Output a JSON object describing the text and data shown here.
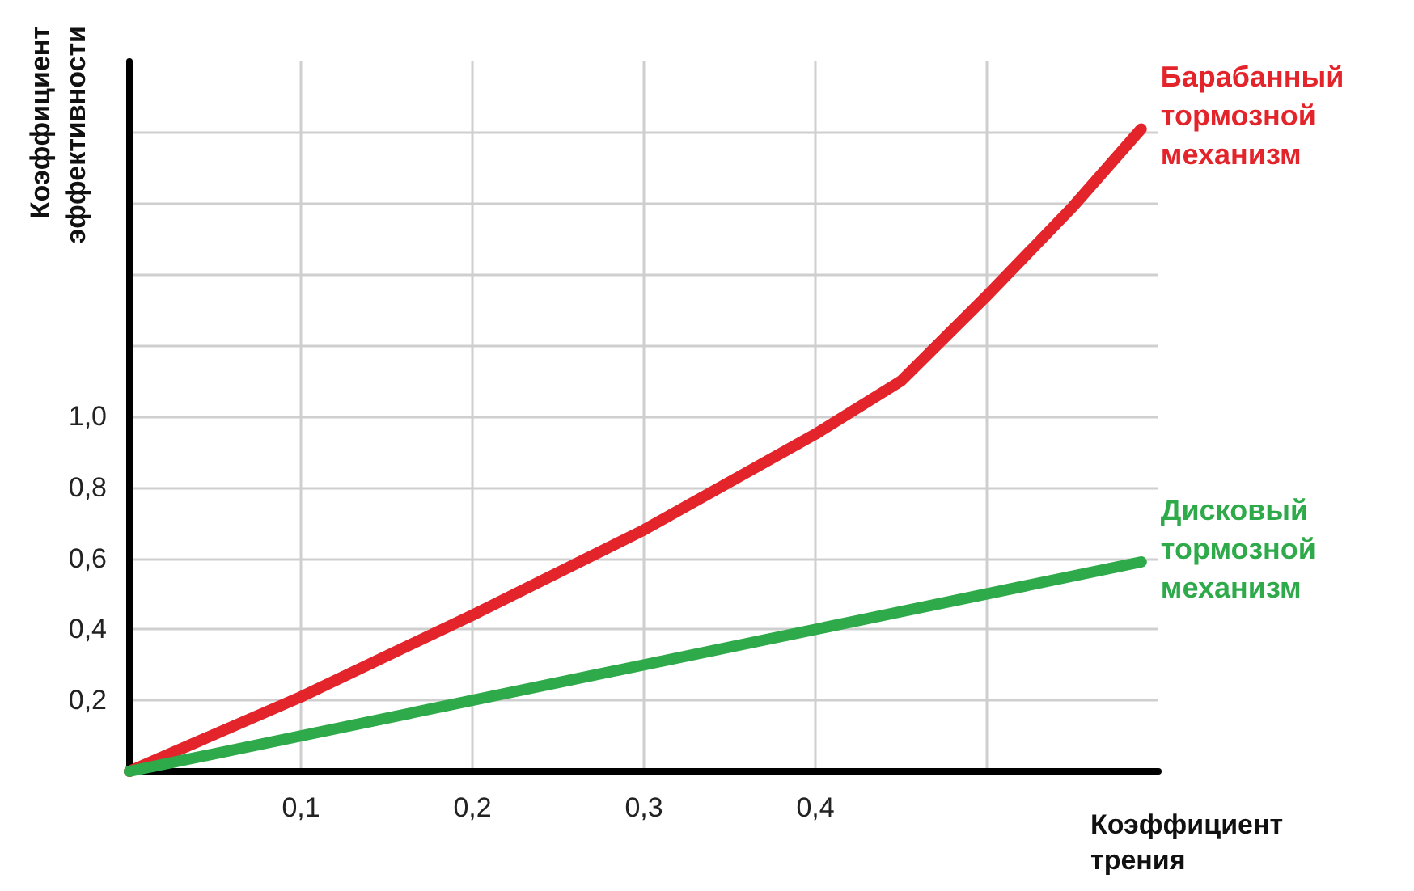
{
  "chart_data": {
    "type": "line",
    "xlabel": "Коэффициент трения",
    "ylabel": "Коэффициент эффективности",
    "xlim": [
      0,
      0.6
    ],
    "ylim": [
      0,
      2.0
    ],
    "xticks": [
      {
        "value": 0.1,
        "label": "0,1"
      },
      {
        "value": 0.2,
        "label": "0,2"
      },
      {
        "value": 0.3,
        "label": "0,3"
      },
      {
        "value": 0.4,
        "label": "0,4"
      },
      {
        "value": 0.5,
        "label": null
      }
    ],
    "yticks": [
      {
        "value": 0.2,
        "label": "0,2"
      },
      {
        "value": 0.4,
        "label": "0,4"
      },
      {
        "value": 0.6,
        "label": "0,6"
      },
      {
        "value": 0.8,
        "label": "0,8"
      },
      {
        "value": 1.0,
        "label": "1,0"
      },
      {
        "value": 1.2,
        "label": null
      },
      {
        "value": 1.4,
        "label": null
      },
      {
        "value": 1.6,
        "label": null
      },
      {
        "value": 1.8,
        "label": null
      }
    ],
    "grid": true,
    "marker": "none",
    "line_style": "solid",
    "series": [
      {
        "name": "Барабанный тормозной механизм",
        "color": "#e3242b",
        "x": [
          0,
          0.1,
          0.2,
          0.3,
          0.4,
          0.45,
          0.5,
          0.55,
          0.59
        ],
        "values": [
          0,
          0.21,
          0.44,
          0.68,
          0.95,
          1.1,
          1.34,
          1.59,
          1.81
        ]
      },
      {
        "name": "Дисковый тормозной механизм",
        "color": "#2eaa4a",
        "x": [
          0,
          0.59
        ],
        "values": [
          0,
          0.59
        ]
      }
    ]
  }
}
